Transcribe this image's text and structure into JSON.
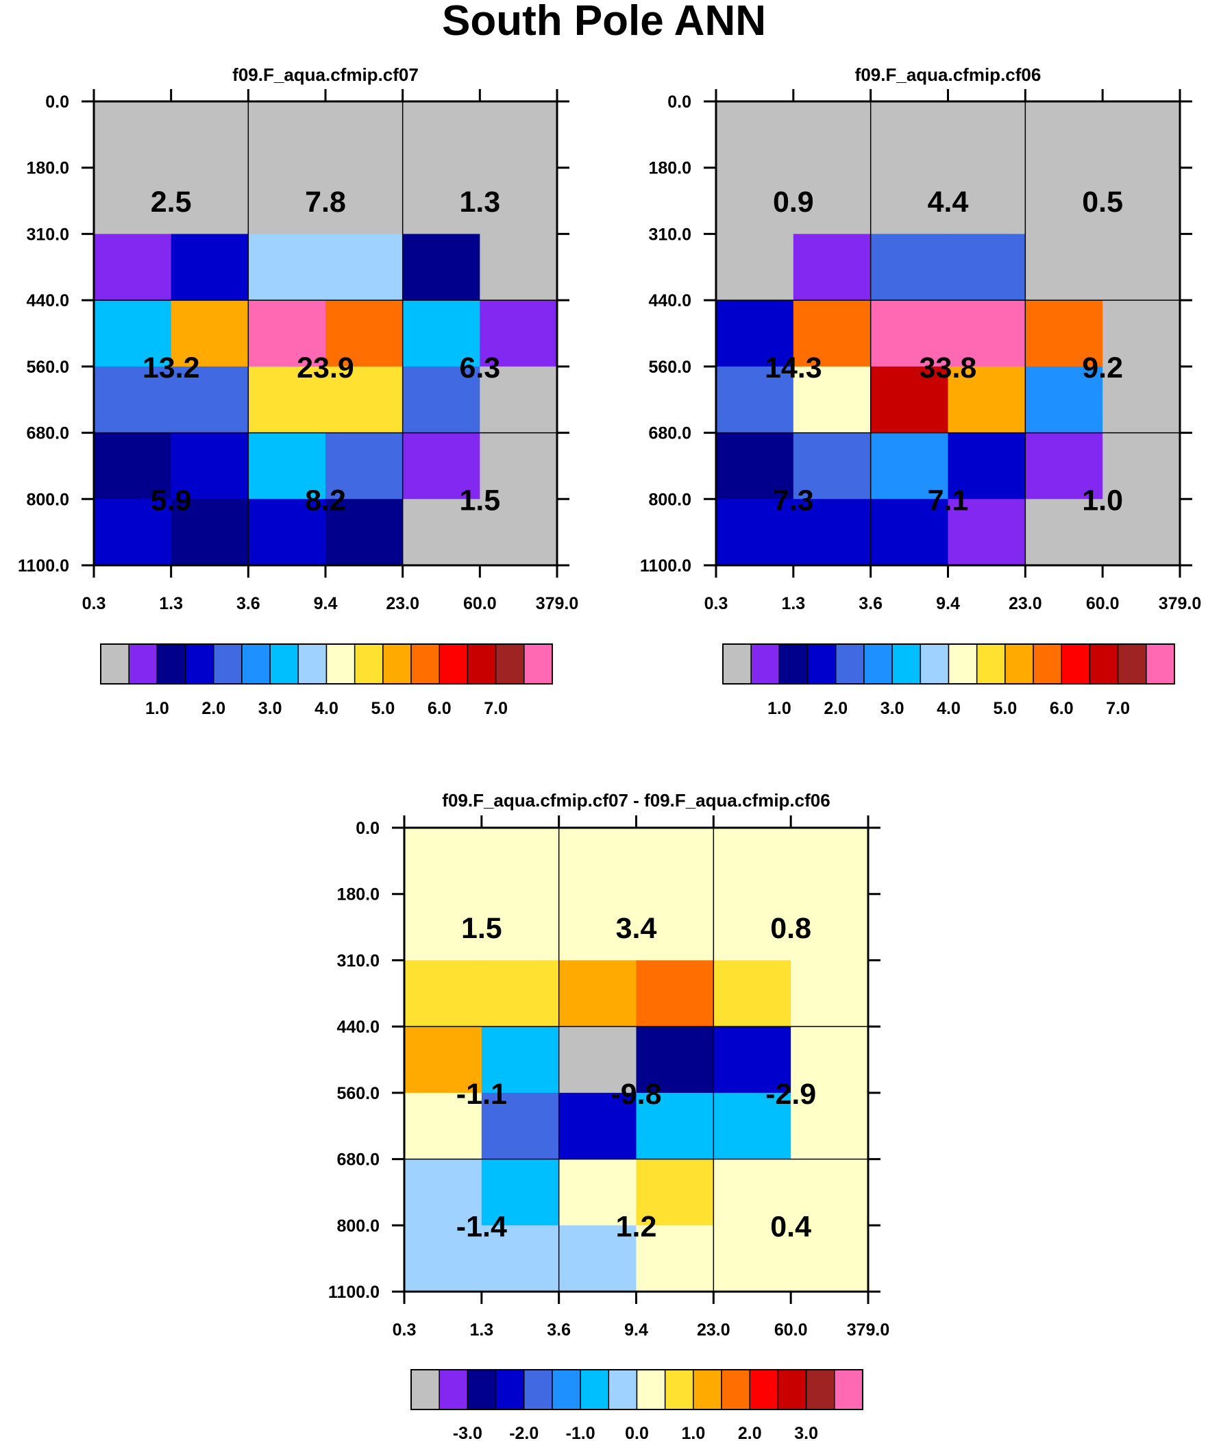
{
  "title": "South Pole ANN",
  "colors": {
    "abs": [
      "#c0c0c0",
      "#8228f0",
      "#00008c",
      "#0000cd",
      "#4169e1",
      "#1e90ff",
      "#00bfff",
      "#a0d2ff",
      "#ffffc8",
      "#ffe132",
      "#ffaa00",
      "#ff6e00",
      "#ff0000",
      "#c80000",
      "#a02323",
      "#ff69b4"
    ],
    "diff": [
      "#c0c0c0",
      "#8228f0",
      "#00008c",
      "#0000cd",
      "#4169e1",
      "#1e90ff",
      "#00bfff",
      "#a0d2ff",
      "#ffffc8",
      "#ffe132",
      "#ffaa00",
      "#ff6e00",
      "#ff0000",
      "#c80000",
      "#a02323",
      "#ff69b4"
    ]
  },
  "chart_data": [
    {
      "type": "heatmap",
      "title": "f09.F_aqua.cfmip.cf07",
      "x_tick_labels": [
        "0.3",
        "1.3",
        "3.6",
        "9.4",
        "23.0",
        "60.0",
        "379.0"
      ],
      "y_tick_labels": [
        "0.0",
        "180.0",
        "310.0",
        "440.0",
        "560.0",
        "680.0",
        "800.0",
        "1100.0"
      ],
      "xlabel": "",
      "ylabel": "",
      "cells": [
        [
          "gray",
          "gray",
          "gray",
          "gray",
          "gray",
          "gray"
        ],
        [
          "gray",
          "gray",
          "gray",
          "gray",
          "gray",
          "gray"
        ],
        [
          "purple",
          "medblue",
          "lightblue",
          "lightblue",
          "navy",
          "gray"
        ],
        [
          "deepsky",
          "orange",
          "pink",
          "darkorange",
          "deepsky",
          "purple"
        ],
        [
          "royal",
          "royal",
          "gold",
          "gold",
          "royal",
          "gray"
        ],
        [
          "navy",
          "medblue",
          "deepsky",
          "royal",
          "purple",
          "gray"
        ],
        [
          "medblue",
          "navy",
          "medblue",
          "navy",
          "gray",
          "gray"
        ]
      ],
      "box_values": [
        [
          "2.5",
          "7.8",
          "1.3"
        ],
        [
          "13.2",
          "23.9",
          "6.3"
        ],
        [
          "5.9",
          "8.2",
          "1.5"
        ]
      ],
      "colorbar_labels": [
        "1.0",
        "2.0",
        "3.0",
        "4.0",
        "5.0",
        "6.0",
        "7.0"
      ]
    },
    {
      "type": "heatmap",
      "title": "f09.F_aqua.cfmip.cf06",
      "x_tick_labels": [
        "0.3",
        "1.3",
        "3.6",
        "9.4",
        "23.0",
        "60.0",
        "379.0"
      ],
      "y_tick_labels": [
        "0.0",
        "180.0",
        "310.0",
        "440.0",
        "560.0",
        "680.0",
        "800.0",
        "1100.0"
      ],
      "xlabel": "",
      "ylabel": "",
      "cells": [
        [
          "gray",
          "gray",
          "gray",
          "gray",
          "gray",
          "gray"
        ],
        [
          "gray",
          "gray",
          "gray",
          "gray",
          "gray",
          "gray"
        ],
        [
          "gray",
          "purple",
          "royal",
          "royal",
          "gray",
          "gray"
        ],
        [
          "medblue",
          "darkorange",
          "pink",
          "pink",
          "darkorange",
          "gray"
        ],
        [
          "royal",
          "lightyellow",
          "red3",
          "orange",
          "dodger",
          "gray"
        ],
        [
          "navy",
          "royal",
          "dodger",
          "medblue",
          "purple",
          "gray"
        ],
        [
          "medblue",
          "medblue",
          "medblue",
          "purple",
          "gray",
          "gray"
        ]
      ],
      "box_values": [
        [
          "0.9",
          "4.4",
          "0.5"
        ],
        [
          "14.3",
          "33.8",
          "9.2"
        ],
        [
          "7.3",
          "7.1",
          "1.0"
        ]
      ],
      "colorbar_labels": [
        "1.0",
        "2.0",
        "3.0",
        "4.0",
        "5.0",
        "6.0",
        "7.0"
      ]
    },
    {
      "type": "heatmap",
      "title": "f09.F_aqua.cfmip.cf07 - f09.F_aqua.cfmip.cf06",
      "x_tick_labels": [
        "0.3",
        "1.3",
        "3.6",
        "9.4",
        "23.0",
        "60.0",
        "379.0"
      ],
      "y_tick_labels": [
        "0.0",
        "180.0",
        "310.0",
        "440.0",
        "560.0",
        "680.0",
        "800.0",
        "1100.0"
      ],
      "xlabel": "",
      "ylabel": "",
      "cells": [
        [
          "lightyellow",
          "lightyellow",
          "lightyellow",
          "lightyellow",
          "lightyellow",
          "lightyellow"
        ],
        [
          "lightyellow",
          "lightyellow",
          "lightyellow",
          "lightyellow",
          "lightyellow",
          "lightyellow"
        ],
        [
          "gold",
          "gold",
          "orange",
          "darkorange",
          "gold",
          "lightyellow"
        ],
        [
          "orange",
          "deepsky",
          "gray",
          "navy",
          "medblue",
          "lightyellow"
        ],
        [
          "lightyellow",
          "royal",
          "medblue",
          "deepsky",
          "deepsky",
          "lightyellow"
        ],
        [
          "lightblue",
          "deepsky",
          "lightyellow",
          "gold",
          "lightyellow",
          "lightyellow"
        ],
        [
          "lightblue",
          "lightblue",
          "lightblue",
          "lightyellow",
          "lightyellow",
          "lightyellow"
        ]
      ],
      "box_values": [
        [
          "1.5",
          "3.4",
          "0.8"
        ],
        [
          "-1.1",
          "-9.8",
          "-2.9"
        ],
        [
          "-1.4",
          "1.2",
          "0.4"
        ]
      ],
      "colorbar_labels": [
        "-3.0",
        "-2.0",
        "-1.0",
        "0.0",
        "1.0",
        "2.0",
        "3.0"
      ]
    }
  ],
  "color_names": {
    "gray": "#c0c0c0",
    "purple": "#8228f0",
    "navy": "#00008c",
    "medblue": "#0000cd",
    "royal": "#4169e1",
    "dodger": "#1e90ff",
    "deepsky": "#00bfff",
    "lightblue": "#a0d2ff",
    "lightyellow": "#ffffc8",
    "gold": "#ffe132",
    "orange": "#ffaa00",
    "darkorange": "#ff6e00",
    "red": "#ff0000",
    "red3": "#c80000",
    "brown": "#a02323",
    "pink": "#ff69b4"
  }
}
